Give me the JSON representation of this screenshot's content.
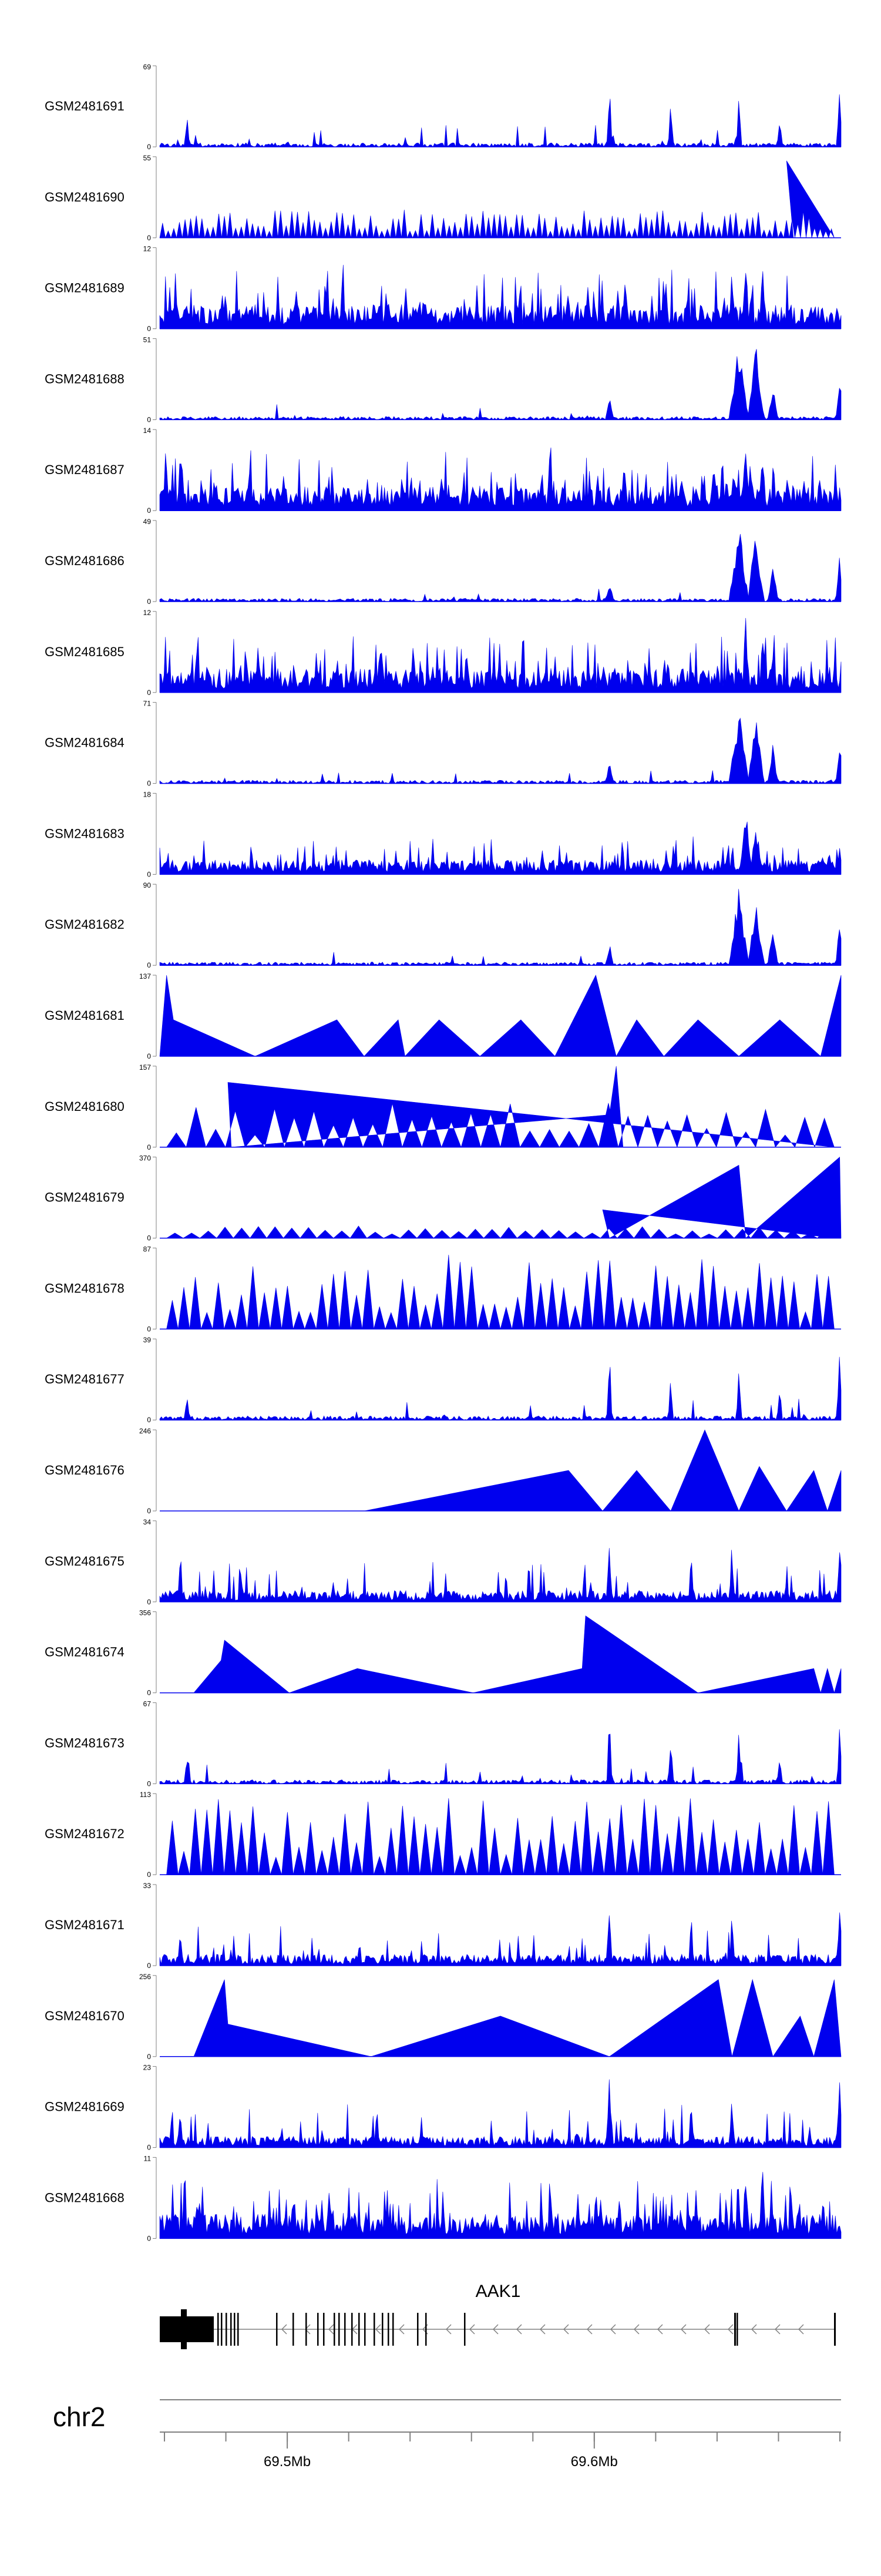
{
  "chart_data": {
    "type": "area",
    "title": "",
    "tracks": [
      {
        "name": "GSM2481691",
        "max": 69,
        "min": 0,
        "shape": "sparse"
      },
      {
        "name": "GSM2481690",
        "max": 55,
        "min": 0,
        "shape": "dense-tri"
      },
      {
        "name": "GSM2481689",
        "max": 12,
        "min": 0,
        "shape": "noisy"
      },
      {
        "name": "GSM2481688",
        "max": 51,
        "min": 0,
        "shape": "peaky"
      },
      {
        "name": "GSM2481687",
        "max": 14,
        "min": 0,
        "shape": "noisy"
      },
      {
        "name": "GSM2481686",
        "max": 49,
        "min": 0,
        "shape": "peaky"
      },
      {
        "name": "GSM2481685",
        "max": 12,
        "min": 0,
        "shape": "noisy"
      },
      {
        "name": "GSM2481684",
        "max": 71,
        "min": 0,
        "shape": "peaky"
      },
      {
        "name": "GSM2481683",
        "max": 18,
        "min": 0,
        "shape": "noisy-low"
      },
      {
        "name": "GSM2481682",
        "max": 90,
        "min": 0,
        "shape": "peaky"
      },
      {
        "name": "GSM2481681",
        "max": 137,
        "min": 0,
        "shape": "big-tri"
      },
      {
        "name": "GSM2481680",
        "max": 157,
        "min": 0,
        "shape": "mid-tri"
      },
      {
        "name": "GSM2481679",
        "max": 370,
        "min": 0,
        "shape": "small-tri"
      },
      {
        "name": "GSM2481678",
        "max": 87,
        "min": 0,
        "shape": "dense-tri-tall"
      },
      {
        "name": "GSM2481677",
        "max": 39,
        "min": 0,
        "shape": "sparse"
      },
      {
        "name": "GSM2481676",
        "max": 246,
        "min": 0,
        "shape": "huge-tri"
      },
      {
        "name": "GSM2481675",
        "max": 34,
        "min": 0,
        "shape": "sparse-noisy"
      },
      {
        "name": "GSM2481674",
        "max": 356,
        "min": 0,
        "shape": "huge-tri-2"
      },
      {
        "name": "GSM2481673",
        "max": 67,
        "min": 0,
        "shape": "sparse"
      },
      {
        "name": "GSM2481672",
        "max": 113,
        "min": 0,
        "shape": "dense-tri-tall"
      },
      {
        "name": "GSM2481671",
        "max": 33,
        "min": 0,
        "shape": "sparse-noisy"
      },
      {
        "name": "GSM2481670",
        "max": 256,
        "min": 0,
        "shape": "huge-tri-3"
      },
      {
        "name": "GSM2481669",
        "max": 23,
        "min": 0,
        "shape": "sparse-noisy"
      },
      {
        "name": "GSM2481668",
        "max": 11,
        "min": 0,
        "shape": "noisy"
      }
    ],
    "gene": {
      "name": "AAK1",
      "strand": "-"
    },
    "chromosome": "chr2",
    "axis": {
      "range_mb": [
        69.46,
        69.68
      ],
      "ticks_mb": [
        69.46,
        69.48,
        69.5,
        69.52,
        69.54,
        69.56,
        69.58,
        69.6,
        69.62,
        69.64,
        69.66,
        69.68
      ],
      "labeled_ticks": [
        {
          "value": 69.5,
          "label": "69.5Mb"
        },
        {
          "value": 69.6,
          "label": "69.6Mb"
        }
      ]
    },
    "colors": {
      "signal": "#0000EE",
      "gene": "#000000",
      "axis": "#808080"
    }
  }
}
